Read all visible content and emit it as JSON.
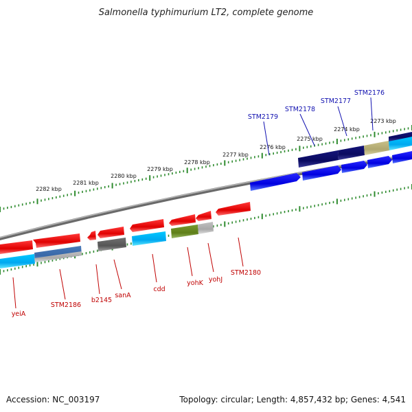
{
  "title": "Salmonella typhimurium LT2, complete genome",
  "footer": {
    "accession": "Accession: NC_003197",
    "summary": "Topology: circular; Length: 4,857,432 bp; Genes: 4,541"
  },
  "colors": {
    "forward_label": "#1010b0",
    "reverse_label": "#c00000",
    "tick": "#2e8b2e",
    "backbone": "#808080"
  },
  "tick_labels": [
    "2273 kbp",
    "2274 kbp",
    "2275 kbp",
    "2276 kbp",
    "2277 kbp",
    "2278 kbp",
    "2279 kbp",
    "2280 kbp",
    "2281 kbp",
    "2282 kbp"
  ],
  "forward_genes": [
    {
      "label": "STM2176",
      "color": "#b8b070"
    },
    {
      "label": "STM2177",
      "color": "#101068"
    },
    {
      "label": "STM2178",
      "color": "#101068"
    },
    {
      "label": "STM2179",
      "color": ""
    }
  ],
  "reverse_genes": [
    {
      "label": "yeiA",
      "color": "#00b0ff"
    },
    {
      "label": "STM2186",
      "color": "#4878b0"
    },
    {
      "label": "b2145",
      "color": ""
    },
    {
      "label": "sanA",
      "color": "#606060"
    },
    {
      "label": "cdd",
      "color": "#00b0ff"
    },
    {
      "label": "yohK",
      "color": "#6a8a20"
    },
    {
      "label": "yohJ",
      "color": "#b0b0b0"
    },
    {
      "label": "STM2180",
      "color": ""
    }
  ]
}
